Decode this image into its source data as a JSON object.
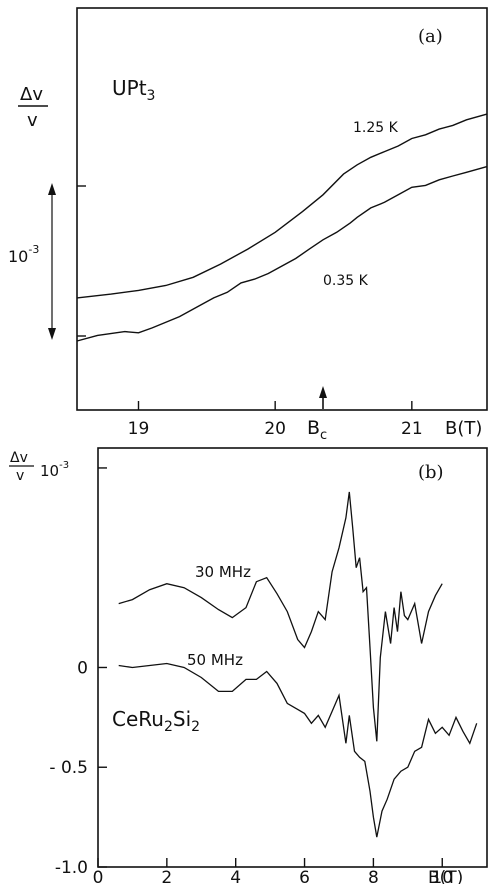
{
  "chart_data": [
    {
      "type": "line",
      "panel_label": "(a)",
      "sample": "UPt",
      "sample_sub": "3",
      "ylabel_num": "Δv",
      "ylabel_den": "v",
      "scale_bar_base": "10",
      "scale_bar_exp": "-3",
      "xlabel": "B(T)",
      "x_ticks": [
        "19",
        "20",
        "21"
      ],
      "xlim": [
        18.55,
        21.55
      ],
      "bc_marker": {
        "label": "B",
        "sub": "c",
        "x": 20.35
      },
      "series": [
        {
          "name": "1.25 K",
          "x": [
            18.55,
            18.8,
            19.0,
            19.2,
            19.4,
            19.6,
            19.8,
            20.0,
            20.2,
            20.35,
            20.5,
            20.6,
            20.7,
            20.8,
            20.9,
            21.0,
            21.1,
            21.2,
            21.3,
            21.4,
            21.55
          ],
          "y": [
            1.55,
            1.65,
            1.75,
            1.88,
            2.1,
            2.45,
            2.85,
            3.3,
            3.85,
            4.3,
            4.85,
            5.1,
            5.3,
            5.45,
            5.6,
            5.8,
            5.9,
            6.05,
            6.15,
            6.3,
            6.45
          ]
        },
        {
          "name": "0.35 K",
          "x": [
            18.55,
            18.7,
            18.9,
            19.0,
            19.1,
            19.3,
            19.45,
            19.55,
            19.65,
            19.75,
            19.85,
            19.95,
            20.05,
            20.15,
            20.25,
            20.35,
            20.45,
            20.55,
            20.6,
            20.7,
            20.8,
            20.9,
            21.0,
            21.1,
            21.2,
            21.3,
            21.4,
            21.55
          ],
          "y": [
            0.4,
            0.55,
            0.65,
            0.62,
            0.75,
            1.05,
            1.35,
            1.55,
            1.7,
            1.95,
            2.05,
            2.2,
            2.4,
            2.6,
            2.85,
            3.1,
            3.3,
            3.55,
            3.7,
            3.95,
            4.1,
            4.3,
            4.5,
            4.55,
            4.7,
            4.8,
            4.9,
            5.05
          ]
        }
      ]
    },
    {
      "type": "line",
      "panel_label": "(b)",
      "sample": "CeRu",
      "sample_sub1": "2",
      "sample_mid": "Si",
      "sample_sub2": "2",
      "ylabel_num": "Δv",
      "ylabel_den": "v",
      "y_unit_base": "10",
      "y_unit_exp": "-3",
      "xlabel": "B(T)",
      "x_ticks": [
        "0",
        "2",
        "4",
        "6",
        "8",
        "10"
      ],
      "y_ticks": [
        "0",
        "- 0.5",
        "-1.0"
      ],
      "y_tick_values": [
        0,
        -0.5,
        -1.0
      ],
      "top_tick_value": 1.0,
      "xlim": [
        0,
        11.3
      ],
      "ylim": [
        -1.0,
        1.1
      ],
      "series": [
        {
          "name": "30 MHz",
          "x": [
            0.6,
            1.0,
            1.5,
            2.0,
            2.5,
            3.0,
            3.5,
            3.9,
            4.3,
            4.6,
            4.9,
            5.2,
            5.5,
            5.8,
            6.0,
            6.2,
            6.4,
            6.6,
            6.8,
            7.0,
            7.2,
            7.3,
            7.4,
            7.5,
            7.6,
            7.7,
            7.8,
            7.9,
            8.0,
            8.1,
            8.2,
            8.35,
            8.5,
            8.6,
            8.7,
            8.8,
            8.9,
            9.0,
            9.2,
            9.4,
            9.6,
            9.8,
            10.0
          ],
          "y": [
            0.32,
            0.34,
            0.39,
            0.42,
            0.4,
            0.35,
            0.29,
            0.25,
            0.3,
            0.43,
            0.45,
            0.37,
            0.28,
            0.14,
            0.1,
            0.18,
            0.28,
            0.24,
            0.48,
            0.6,
            0.75,
            0.88,
            0.7,
            0.5,
            0.55,
            0.38,
            0.4,
            0.1,
            -0.2,
            -0.37,
            0.05,
            0.28,
            0.12,
            0.3,
            0.18,
            0.38,
            0.26,
            0.24,
            0.32,
            0.12,
            0.28,
            0.36,
            0.42
          ]
        },
        {
          "name": "50 MHz",
          "x": [
            0.6,
            1.0,
            1.5,
            2.0,
            2.5,
            3.0,
            3.5,
            3.9,
            4.3,
            4.6,
            4.9,
            5.2,
            5.5,
            5.8,
            6.0,
            6.2,
            6.4,
            6.6,
            6.8,
            7.0,
            7.2,
            7.3,
            7.45,
            7.6,
            7.75,
            7.9,
            8.0,
            8.1,
            8.25,
            8.4,
            8.6,
            8.8,
            9.0,
            9.2,
            9.4,
            9.6,
            9.8,
            10.0,
            10.2,
            10.4,
            10.6,
            10.8,
            11.0
          ],
          "y": [
            0.01,
            0.0,
            0.01,
            0.02,
            0.0,
            -0.05,
            -0.12,
            -0.12,
            -0.06,
            -0.06,
            -0.02,
            -0.08,
            -0.18,
            -0.21,
            -0.23,
            -0.28,
            -0.24,
            -0.3,
            -0.22,
            -0.14,
            -0.38,
            -0.24,
            -0.42,
            -0.45,
            -0.47,
            -0.62,
            -0.75,
            -0.85,
            -0.72,
            -0.66,
            -0.56,
            -0.52,
            -0.5,
            -0.42,
            -0.4,
            -0.26,
            -0.33,
            -0.3,
            -0.34,
            -0.25,
            -0.32,
            -0.38,
            -0.28
          ]
        }
      ]
    }
  ]
}
